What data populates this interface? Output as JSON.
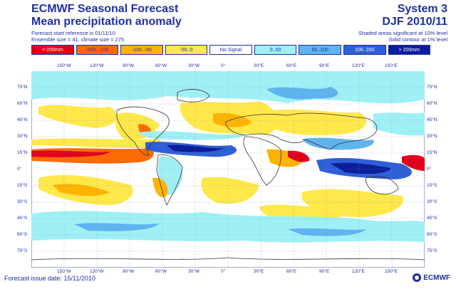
{
  "header": {
    "title": "ECMWF Seasonal Forecast",
    "subtitle": "Mean precipitation anomaly",
    "forecast_start": "Forecast start reference is 01/11/10",
    "ensemble": "Ensemble size = 41, climate size = 275",
    "system": "System 3",
    "period": "DJF 2010/11",
    "significance_shaded": "Shaded areas significant at 10% level",
    "significance_contour": "Solid contour at 1% level"
  },
  "legend": [
    {
      "label": "<-200mm",
      "color": "#e0001b",
      "dark": true
    },
    {
      "label": "-200..-100",
      "color": "#ff6a00",
      "dark": false
    },
    {
      "label": "-100..-50",
      "color": "#ffb400",
      "dark": false
    },
    {
      "label": "-50..0",
      "color": "#ffe84a",
      "dark": false
    },
    {
      "label": "No Signal",
      "color": "#ffffff",
      "dark": false
    },
    {
      "label": "0..50",
      "color": "#9ff0f5",
      "dark": false
    },
    {
      "label": "50..100",
      "color": "#5fb4ef",
      "dark": false
    },
    {
      "label": "100..200",
      "color": "#2e5fd6",
      "dark": true
    },
    {
      "label": "> 200mm",
      "color": "#0c1e9a",
      "dark": true
    }
  ],
  "longitudes": [
    "150°W",
    "120°W",
    "90°W",
    "60°W",
    "30°W",
    "0°",
    "30°E",
    "60°E",
    "90°E",
    "120°E",
    "150°E"
  ],
  "latitudes": [
    "75°N",
    "60°N",
    "45°N",
    "30°N",
    "15°N",
    "0°",
    "15°S",
    "30°S",
    "45°S",
    "60°S",
    "75°S"
  ],
  "footer": {
    "issue_date": "Forecast issue date: 15/11/2010",
    "logo": "ECMWF"
  }
}
